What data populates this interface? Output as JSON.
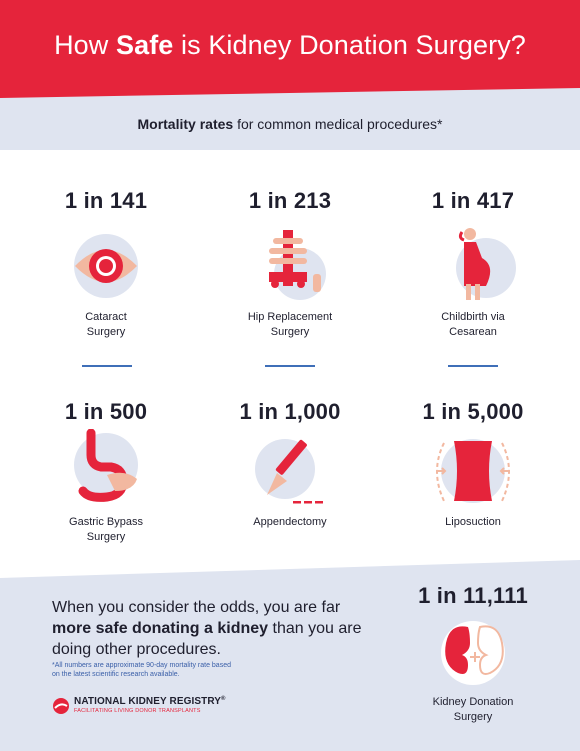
{
  "header": {
    "title_pre": "How ",
    "title_bold": "Safe",
    "title_post": " is Kidney Donation Surgery?",
    "subtitle_bold": "Mortality rates",
    "subtitle_rest": " for common medical procedures*"
  },
  "procedures": [
    {
      "rate": "1 in 141",
      "label_line1": "Cataract",
      "label_line2": "Surgery",
      "icon": "eye-icon"
    },
    {
      "rate": "1 in 213",
      "label_line1": "Hip Replacement",
      "label_line2": "Surgery",
      "icon": "hip-joint-icon"
    },
    {
      "rate": "1 in 417",
      "label_line1": "Childbirth via",
      "label_line2": "Cesarean",
      "icon": "pregnant-woman-icon"
    },
    {
      "rate": "1 in 500",
      "label_line1": "Gastric Bypass",
      "label_line2": "Surgery",
      "icon": "stomach-icon"
    },
    {
      "rate": "1 in 1,000",
      "label_line1": "Appendectomy",
      "label_line2": "",
      "icon": "scalpel-icon"
    },
    {
      "rate": "1 in 5,000",
      "label_line1": "Liposuction",
      "label_line2": "",
      "icon": "waist-compress-icon"
    }
  ],
  "kidney": {
    "rate": "1 in 11,111",
    "label_line1": "Kidney Donation",
    "label_line2": "Surgery",
    "icon": "kidney-icon"
  },
  "conclusion": {
    "part1": "When you consider the odds, you are far ",
    "bold": "more safe donating a kidney",
    "part2": " than you are doing other procedures."
  },
  "footnote": {
    "line1": "*All numbers are approximate 90-day mortality rate based",
    "line2": "on the latest scientific research available."
  },
  "logo": {
    "name": "NATIONAL KIDNEY REGISTRY",
    "symbol": "®",
    "tagline": "FACILITATING LIVING DONOR TRANSPLANTS"
  },
  "colors": {
    "brand_red": "#e5243b",
    "light_blue": "#dfe4f0",
    "divider_blue": "#3f6fb8",
    "text_dark": "#1f1f2e",
    "peach": "#f2b8a0"
  }
}
